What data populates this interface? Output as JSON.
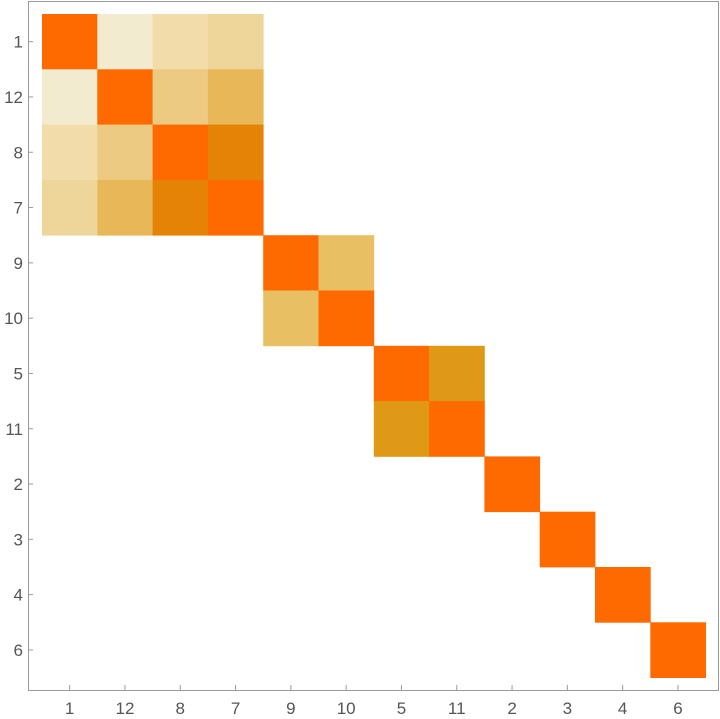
{
  "chart_data": {
    "type": "heatmap",
    "title": "",
    "xlabel": "",
    "ylabel": "",
    "row_labels": [
      "1",
      "12",
      "8",
      "7",
      "9",
      "10",
      "5",
      "11",
      "2",
      "3",
      "4",
      "6"
    ],
    "col_labels": [
      "1",
      "12",
      "8",
      "7",
      "9",
      "10",
      "5",
      "11",
      "2",
      "3",
      "4",
      "6"
    ],
    "matrix": [
      [
        1.0,
        0.1,
        0.25,
        0.3,
        0,
        0,
        0,
        0,
        0,
        0,
        0,
        0
      ],
      [
        0.1,
        1.0,
        0.35,
        0.5,
        0,
        0,
        0,
        0,
        0,
        0,
        0,
        0
      ],
      [
        0.25,
        0.35,
        1.0,
        0.8,
        0,
        0,
        0,
        0,
        0,
        0,
        0,
        0
      ],
      [
        0.3,
        0.5,
        0.8,
        1.0,
        0,
        0,
        0,
        0,
        0,
        0,
        0,
        0
      ],
      [
        0,
        0,
        0,
        0,
        1.0,
        0.45,
        0,
        0,
        0,
        0,
        0,
        0
      ],
      [
        0,
        0,
        0,
        0,
        0.45,
        1.0,
        0,
        0,
        0,
        0,
        0,
        0
      ],
      [
        0,
        0,
        0,
        0,
        0,
        0,
        1.0,
        0.7,
        0,
        0,
        0,
        0
      ],
      [
        0,
        0,
        0,
        0,
        0,
        0,
        0.7,
        1.0,
        0,
        0,
        0,
        0
      ],
      [
        0,
        0,
        0,
        0,
        0,
        0,
        0,
        0,
        1.0,
        0,
        0,
        0
      ],
      [
        0,
        0,
        0,
        0,
        0,
        0,
        0,
        0,
        0,
        1.0,
        0,
        0
      ],
      [
        0,
        0,
        0,
        0,
        0,
        0,
        0,
        0,
        0,
        0,
        1.0,
        0
      ],
      [
        0,
        0,
        0,
        0,
        0,
        0,
        0,
        0,
        0,
        0,
        0,
        1.0
      ]
    ],
    "value_range": [
      0,
      1
    ],
    "colors": {
      "diagonal": "#ff6a00",
      "scale": [
        {
          "at": 0.1,
          "color": "#f3ebd0"
        },
        {
          "at": 0.25,
          "color": "#f2dcaa"
        },
        {
          "at": 0.3,
          "color": "#eed59a"
        },
        {
          "at": 0.35,
          "color": "#ecca82"
        },
        {
          "at": 0.45,
          "color": "#e9bf64"
        },
        {
          "at": 0.5,
          "color": "#e8b858"
        },
        {
          "at": 0.7,
          "color": "#df9916"
        },
        {
          "at": 0.8,
          "color": "#e58306"
        },
        {
          "at": 1.0,
          "color": "#ff6a00"
        }
      ],
      "zero": "#ffffff",
      "frame": "#9a9a9a",
      "tick_text": "#555555"
    },
    "grid": false,
    "legend": "none"
  }
}
